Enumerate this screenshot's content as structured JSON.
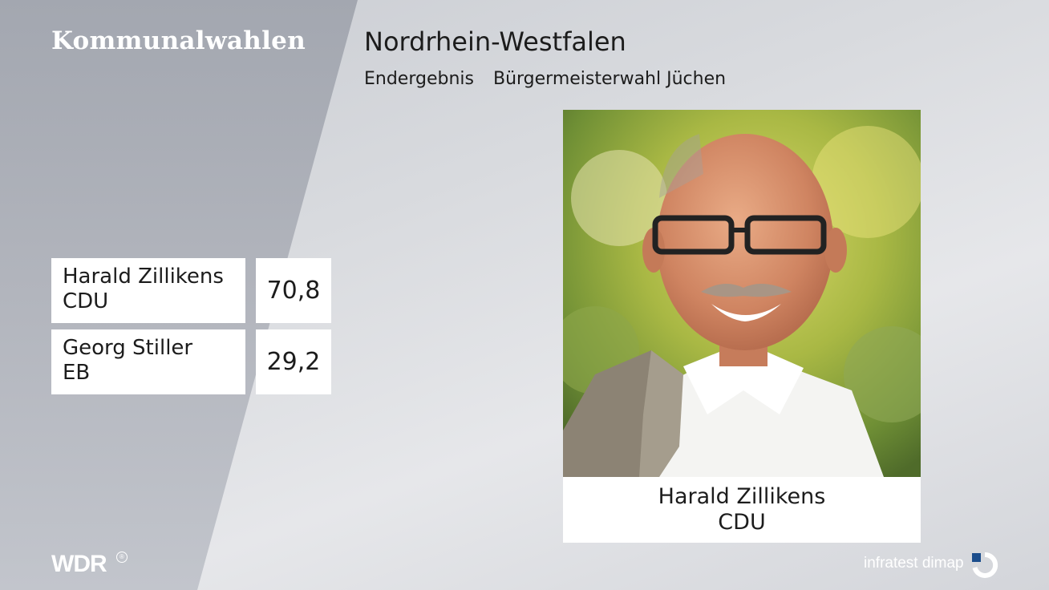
{
  "header": {
    "brand_title": "Kommunalwahlen",
    "main_title": "Nordrhein-Westfalen",
    "subtitle_status": "Endergebnis",
    "subtitle_election": "Bürgermeisterwahl Jüchen"
  },
  "results": [
    {
      "name": "Harald Zillikens",
      "party": "CDU",
      "value": "70,8"
    },
    {
      "name": "Georg Stiller",
      "party": "EB",
      "value": "29,2"
    }
  ],
  "winner": {
    "name": "Harald Zillikens",
    "party": "CDU",
    "photo_icon": "candidate-portrait-photo"
  },
  "footer": {
    "broadcaster_logo": "WDR",
    "registered_mark": "®",
    "pollster": "infratest dimap",
    "pollster_icon": "infratest-dimap-logo-icon"
  },
  "colors": {
    "left_panel": "#a9adb6",
    "background": "#dcdee2",
    "text": "#1c1c1c",
    "box": "#ffffff",
    "logo_accent": "#1b4d8c"
  }
}
